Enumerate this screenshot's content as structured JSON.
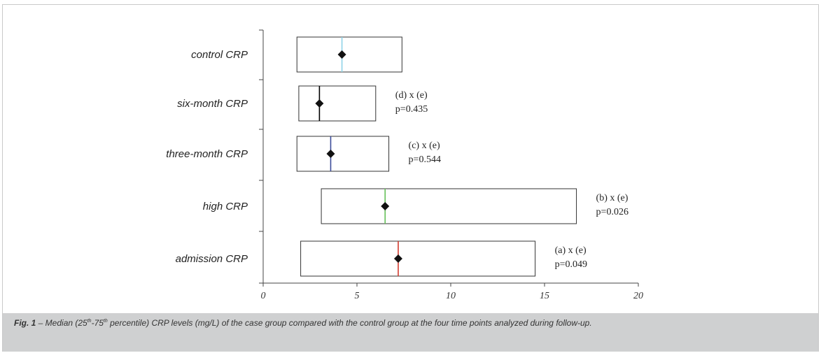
{
  "chart_data": {
    "type": "box",
    "title": "",
    "xlabel": "",
    "ylabel": "",
    "xlim": [
      0,
      20
    ],
    "xticks": [
      0,
      5,
      10,
      15,
      20
    ],
    "grid": false,
    "categories": [
      "control CRP",
      "six-month CRP",
      "three-month CRP",
      "high CRP",
      "admission CRP"
    ],
    "boxes": [
      {
        "category": "control CRP",
        "q1": 1.8,
        "median": 4.2,
        "q3": 7.4,
        "median_color": "#8fd3e8"
      },
      {
        "category": "six-month CRP",
        "q1": 1.9,
        "median": 3.0,
        "q3": 6.0,
        "median_color": "#000000"
      },
      {
        "category": "three-month CRP",
        "q1": 1.8,
        "median": 3.6,
        "q3": 6.7,
        "median_color": "#3b4b9a"
      },
      {
        "category": "high CRP",
        "q1": 3.1,
        "median": 6.5,
        "q3": 16.7,
        "median_color": "#66c05a"
      },
      {
        "category": "admission CRP",
        "q1": 2.0,
        "median": 7.2,
        "q3": 14.5,
        "median_color": "#d23a2e"
      }
    ],
    "annotations": [
      {
        "category": "six-month CRP",
        "line1": "(d) x (e)",
        "line2": "p=0.435"
      },
      {
        "category": "three-month CRP",
        "line1": "(c) x (e)",
        "line2": "p=0.544"
      },
      {
        "category": "high CRP",
        "line1": "(b) x (e)",
        "line2": "p=0.026"
      },
      {
        "category": "admission CRP",
        "line1": "(a) x (e)",
        "line2": "p=0.049"
      }
    ]
  },
  "caption": {
    "label": "Fig. 1",
    "text_before_sup1": " – Median (25",
    "sup1": "th",
    "text_between": "-75",
    "sup2": "th",
    "text_after": " percentile) CRP levels (mg/L) of the case group compared with the control group at the four time points analyzed during follow-up."
  }
}
